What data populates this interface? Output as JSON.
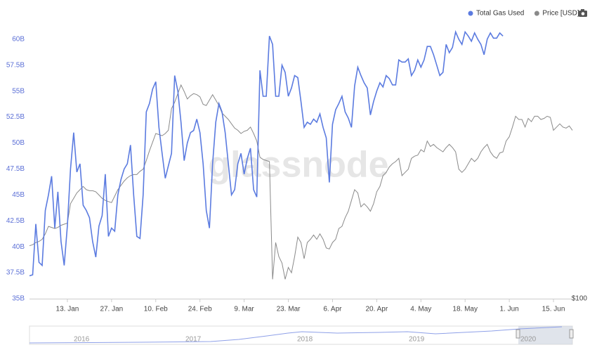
{
  "chart_data": {
    "type": "line",
    "watermark": "glassnode",
    "x": [
      1,
      2,
      3,
      4,
      5,
      6,
      7,
      8,
      9,
      10,
      11,
      12,
      13,
      14,
      15,
      16,
      17,
      18,
      19,
      20,
      21,
      22,
      23,
      24,
      25,
      26,
      27,
      28,
      29,
      30,
      31,
      32,
      33,
      34,
      35,
      36,
      37,
      38,
      39,
      40,
      41,
      42,
      43,
      44,
      45,
      46,
      47,
      48,
      49,
      50,
      51,
      52,
      53,
      54,
      55,
      56,
      57,
      58,
      59,
      60,
      61,
      62,
      63,
      64,
      65,
      66,
      67,
      68,
      69,
      70,
      71,
      72,
      73,
      74,
      75,
      76,
      77,
      78,
      79,
      80,
      81,
      82,
      83,
      84,
      85,
      86,
      87,
      88,
      89,
      90,
      91,
      92,
      93,
      94,
      95,
      96,
      97,
      98,
      99,
      100,
      101,
      102,
      103,
      104,
      105,
      106,
      107,
      108,
      109,
      110,
      111,
      112,
      113,
      114,
      115,
      116,
      117,
      118,
      119,
      120,
      121,
      122,
      123,
      124,
      125,
      126,
      127,
      128,
      129,
      130,
      131,
      132,
      133,
      134,
      135,
      136,
      137,
      138,
      139,
      140,
      141,
      142,
      143,
      144,
      145,
      146,
      147,
      148,
      149,
      150,
      151,
      152,
      153,
      154,
      155,
      156,
      157,
      158,
      159,
      160,
      161,
      162,
      163,
      164,
      165,
      166,
      167,
      168,
      169,
      170,
      171,
      172,
      173
    ],
    "series": [
      {
        "name": "Total Gas Used",
        "color": "#5b7be0",
        "axis": "y",
        "values": [
          37.2,
          37.3,
          42.2,
          38.5,
          38.2,
          43.5,
          45,
          46.8,
          41.8,
          45.3,
          40.5,
          38.2,
          42,
          47.5,
          51,
          47.2,
          48,
          44,
          43.5,
          42.8,
          40.5,
          39,
          42,
          43,
          47,
          41,
          41.8,
          41.5,
          45,
          46.5,
          47.5,
          48,
          49.8,
          45,
          41,
          40.8,
          45,
          53,
          53.8,
          55.2,
          55.9,
          51.5,
          49,
          46.6,
          47.8,
          49,
          56.5,
          55,
          52,
          48.3,
          50,
          51,
          51.2,
          52.3,
          51,
          48,
          43.5,
          41.8,
          48,
          52,
          53.8,
          53,
          51,
          48,
          45,
          45.5,
          48,
          49,
          47,
          48.5,
          49.5,
          45.5,
          44.8,
          57,
          54.5,
          54.5,
          60.3,
          59.5,
          54.5,
          54.5,
          57.5,
          56.8,
          54.5,
          55.3,
          56.5,
          56.3,
          54,
          51.5,
          52,
          51.8,
          52.3,
          52,
          52.8,
          51.5,
          50.5,
          46.2,
          51.8,
          53.2,
          53.8,
          54.5,
          53,
          52.4,
          51.5,
          55.5,
          57.3,
          56.5,
          55.8,
          55.3,
          52.7,
          54,
          55,
          55.8,
          55.4,
          56.5,
          56.2,
          55.6,
          55.6,
          58,
          57.8,
          57.8,
          58.1,
          56.5,
          57,
          58,
          57.3,
          58,
          59.3,
          59.3,
          58.5,
          57.5,
          56.5,
          56.8,
          59.5,
          58.7,
          59.2,
          60.7,
          60,
          59.5,
          60.7,
          60.3,
          59.8,
          60.6,
          60,
          59.5,
          58.5,
          60,
          60.6,
          60.1,
          60.1,
          60.6,
          60.3,
          null,
          null,
          null,
          null,
          null,
          null,
          null,
          null,
          null,
          null,
          null,
          null,
          null,
          null,
          null,
          null,
          null,
          null,
          null,
          null,
          null,
          null
        ]
      },
      {
        "name": "Price [USD]",
        "color": "#8a8a8a",
        "axis": "y2",
        "values": [
          149,
          150,
          152,
          153,
          155,
          160,
          167,
          166,
          165,
          166,
          168,
          169,
          170,
          188,
          193,
          198,
          201,
          204,
          201,
          200,
          200,
          199,
          196,
          193,
          191,
          190,
          189,
          195,
          201,
          205,
          209,
          212,
          214,
          215,
          215,
          218,
          220,
          228,
          237,
          245,
          253,
          252,
          251,
          253,
          256,
          276,
          282,
          290,
          298,
          292,
          285,
          288,
          290,
          289,
          287,
          280,
          279,
          284,
          289,
          284,
          279,
          272,
          269,
          266,
          262,
          258,
          256,
          253,
          255,
          256,
          259,
          253,
          246,
          231,
          229,
          228,
          227,
          118,
          152,
          139,
          133,
          118,
          129,
          124,
          139,
          157,
          152,
          137,
          152,
          155,
          159,
          155,
          160,
          155,
          147,
          146,
          152,
          155,
          165,
          167,
          175,
          181,
          191,
          201,
          198,
          185,
          188,
          185,
          181,
          188,
          199,
          204,
          214,
          217,
          222,
          225,
          227,
          230,
          214,
          217,
          220,
          230,
          232,
          233,
          238,
          236,
          246,
          241,
          243,
          240,
          238,
          236,
          240,
          243,
          240,
          236,
          220,
          217,
          220,
          225,
          230,
          227,
          230,
          236,
          240,
          243,
          236,
          232,
          230,
          235,
          236,
          246,
          250,
          259,
          269,
          266,
          266,
          259,
          267,
          264,
          269,
          269,
          266,
          267,
          269,
          268,
          256,
          259,
          262,
          259,
          258,
          260,
          256
        ]
      }
    ],
    "xlim": [
      1,
      173
    ],
    "xticks": [
      {
        "value": 13,
        "label": "13. Jan"
      },
      {
        "value": 27,
        "label": "27. Jan"
      },
      {
        "value": 41,
        "label": "10. Feb"
      },
      {
        "value": 55,
        "label": "24. Feb"
      },
      {
        "value": 69,
        "label": "9. Mar"
      },
      {
        "value": 83,
        "label": "23. Mar"
      },
      {
        "value": 97,
        "label": "6. Apr"
      },
      {
        "value": 111,
        "label": "20. Apr"
      },
      {
        "value": 125,
        "label": "4. May"
      },
      {
        "value": 139,
        "label": "18. May"
      },
      {
        "value": 153,
        "label": "1. Jun"
      },
      {
        "value": 167,
        "label": "15. Jun"
      }
    ],
    "ylim": [
      35,
      61
    ],
    "yticks": [
      {
        "value": 35,
        "label": "35B"
      },
      {
        "value": 37.5,
        "label": "37.5B"
      },
      {
        "value": 40,
        "label": "40B"
      },
      {
        "value": 42.5,
        "label": "42.5B"
      },
      {
        "value": 45,
        "label": "45B"
      },
      {
        "value": 47.5,
        "label": "47.5B"
      },
      {
        "value": 50,
        "label": "50B"
      },
      {
        "value": 52.5,
        "label": "52.5B"
      },
      {
        "value": 55,
        "label": "55B"
      },
      {
        "value": 57.5,
        "label": "57.5B"
      },
      {
        "value": 60,
        "label": "60B"
      }
    ],
    "y2lim": [
      100,
      350
    ],
    "y2ticks": [
      {
        "value": 100,
        "label": "$100"
      }
    ],
    "grid": false,
    "legend": "top-right",
    "navigator_labels": [
      "2016",
      "2017",
      "2018",
      "2019",
      "2020"
    ]
  }
}
